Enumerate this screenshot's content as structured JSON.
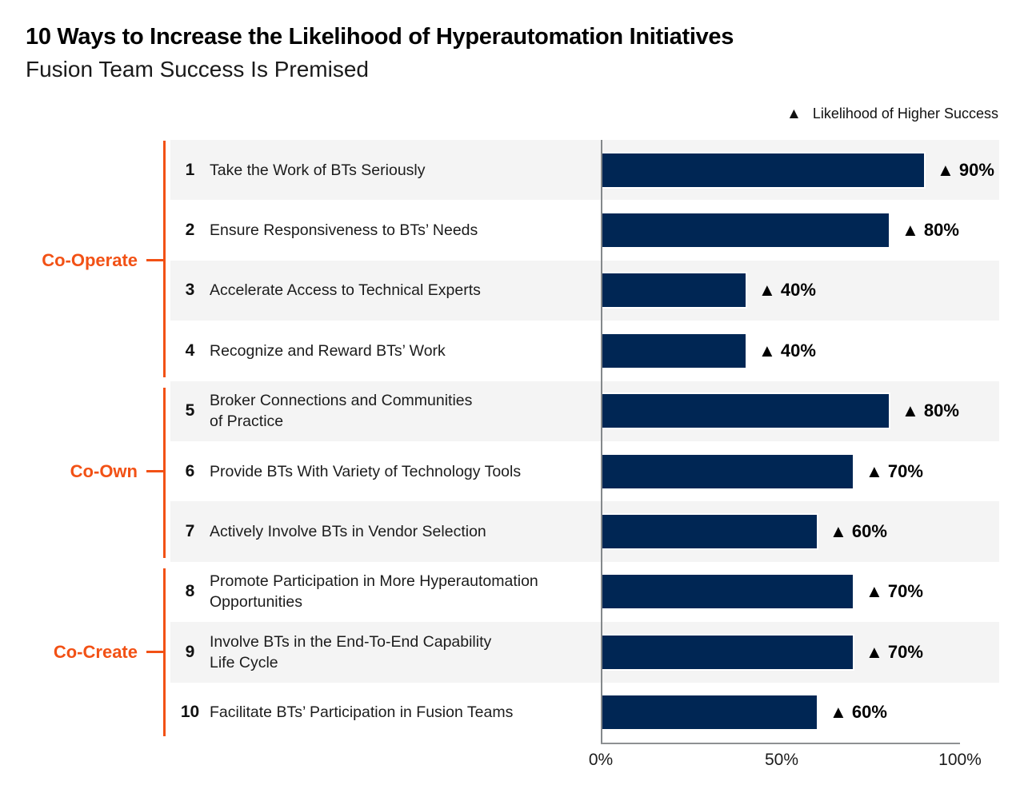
{
  "colors": {
    "bar_navy": "#002654",
    "accent_orange": "#F25115",
    "row_alt_bg": "#F4F4F4",
    "axis_gray": "#84888B",
    "text_dark": "#1C1C1C"
  },
  "chart_data": {
    "type": "bar",
    "orientation": "horizontal",
    "title": "10 Ways to Increase the Likelihood of Hyperautomation Initiatives",
    "subtitle": "Fusion Team Success Is Premised",
    "legend": {
      "symbol": "▲",
      "label": "Likelihood of Higher Success"
    },
    "unit": "%",
    "xlim": [
      0,
      100
    ],
    "x_ticks": [
      "0%",
      "50%",
      "100%"
    ],
    "grid": false,
    "groups": [
      {
        "label": "Co-Operate"
      },
      {
        "label": "Co-Own"
      },
      {
        "label": "Co-Create"
      }
    ],
    "items": [
      {
        "num": "1",
        "label": "Take the Work of BTs Seriously",
        "value": 90,
        "value_label": "90%",
        "group": "Co-Operate"
      },
      {
        "num": "2",
        "label": "Ensure Responsiveness to BTs’ Needs",
        "value": 80,
        "value_label": "80%",
        "group": "Co-Operate"
      },
      {
        "num": "3",
        "label": "Accelerate Access to Technical Experts",
        "value": 40,
        "value_label": "40%",
        "group": "Co-Operate"
      },
      {
        "num": "4",
        "label": "Recognize and Reward BTs’ Work",
        "value": 40,
        "value_label": "40%",
        "group": "Co-Operate"
      },
      {
        "num": "5",
        "label": "Broker Connections and Communities\nof Practice",
        "value": 80,
        "value_label": "80%",
        "group": "Co-Own"
      },
      {
        "num": "6",
        "label": "Provide BTs With Variety of Technology Tools",
        "value": 70,
        "value_label": "70%",
        "group": "Co-Own"
      },
      {
        "num": "7",
        "label": "Actively Involve BTs in Vendor Selection",
        "value": 60,
        "value_label": "60%",
        "group": "Co-Own"
      },
      {
        "num": "8",
        "label": "Promote Participation in More Hyperautomation\nOpportunities",
        "value": 70,
        "value_label": "70%",
        "group": "Co-Create"
      },
      {
        "num": "9",
        "label": "Involve BTs in the End-To-End Capability\nLife Cycle",
        "value": 70,
        "value_label": "70%",
        "group": "Co-Create"
      },
      {
        "num": "10",
        "label": "Facilitate BTs’ Participation in Fusion Teams",
        "value": 60,
        "value_label": "60%",
        "group": "Co-Create"
      }
    ]
  }
}
